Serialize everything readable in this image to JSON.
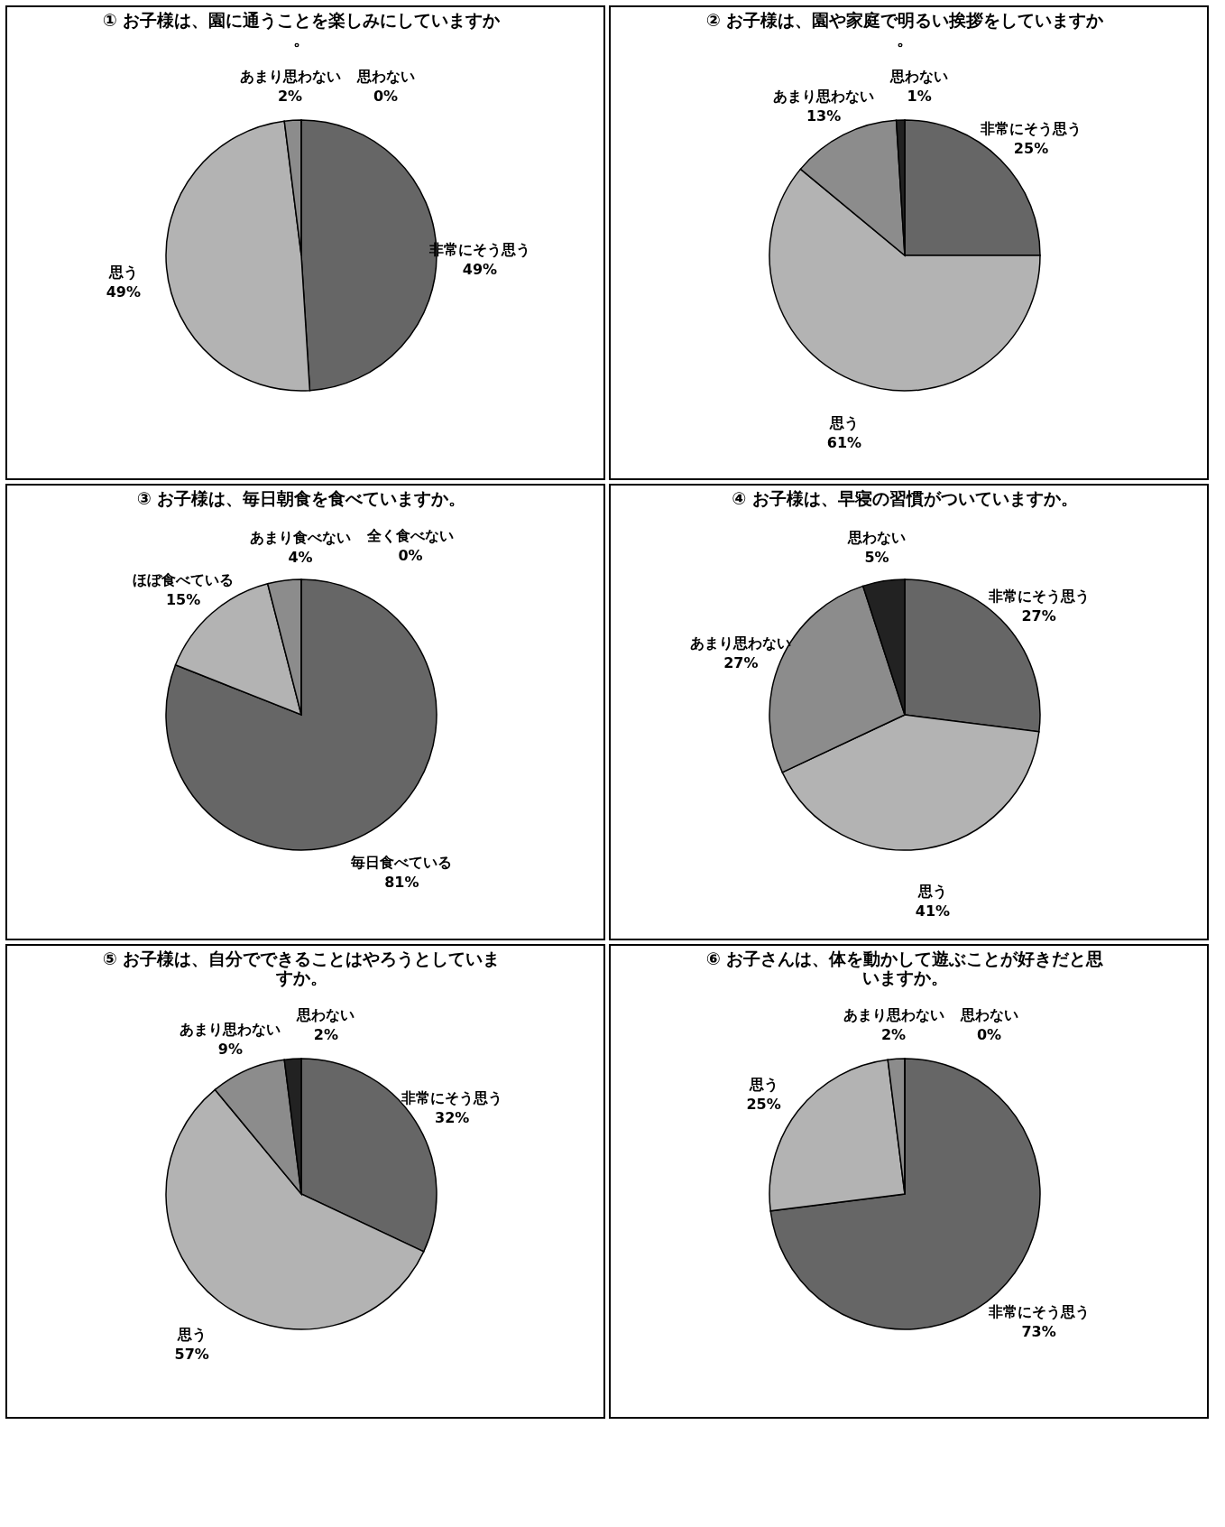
{
  "chart_data": [
    {
      "type": "pie",
      "title": "① お子様は、園に通うことを楽しみにしていますか。",
      "categories": [
        "非常にそう思う",
        "思う",
        "あまり思わない",
        "思わない"
      ],
      "values": [
        49,
        49,
        2,
        0
      ],
      "value_labels": [
        "49%",
        "49%",
        "2%",
        "0%"
      ],
      "colors": [
        "#666666",
        "#b3b3b3",
        "#8c8c8c",
        "#222222"
      ]
    },
    {
      "type": "pie",
      "title": "② お子様は、園や家庭で明るい挨拶をしていますか。",
      "categories": [
        "非常にそう思う",
        "思う",
        "あまり思わない",
        "思わない"
      ],
      "values": [
        25,
        61,
        13,
        1
      ],
      "value_labels": [
        "25%",
        "61%",
        "13%",
        "1%"
      ],
      "colors": [
        "#666666",
        "#b3b3b3",
        "#8c8c8c",
        "#222222"
      ]
    },
    {
      "type": "pie",
      "title": "③ お子様は、毎日朝食を食べていますか。",
      "categories": [
        "毎日食べている",
        "ほぼ食べている",
        "あまり食べない",
        "全く食べない"
      ],
      "values": [
        81,
        15,
        4,
        0
      ],
      "value_labels": [
        "81%",
        "15%",
        "4%",
        "0%"
      ],
      "colors": [
        "#666666",
        "#b3b3b3",
        "#8c8c8c",
        "#222222"
      ]
    },
    {
      "type": "pie",
      "title": "④ お子様は、早寝の習慣がついていますか。",
      "categories": [
        "非常にそう思う",
        "思う",
        "あまり思わない",
        "思わない"
      ],
      "values": [
        27,
        41,
        27,
        5
      ],
      "value_labels": [
        "27%",
        "41%",
        "27%",
        "5%"
      ],
      "colors": [
        "#666666",
        "#b3b3b3",
        "#8c8c8c",
        "#222222"
      ]
    },
    {
      "type": "pie",
      "title": "⑤ お子様は、自分でできることはやろうとしていますか。",
      "categories": [
        "非常にそう思う",
        "思う",
        "あまり思わない",
        "思わない"
      ],
      "values": [
        32,
        57,
        9,
        2
      ],
      "value_labels": [
        "32%",
        "57%",
        "9%",
        "2%"
      ],
      "colors": [
        "#666666",
        "#b3b3b3",
        "#8c8c8c",
        "#222222"
      ]
    },
    {
      "type": "pie",
      "title": "⑥ お子さんは、体を動かして遊ぶことが好きだと思いますか。",
      "categories": [
        "非常にそう思う",
        "思う",
        "あまり思わない",
        "思わない"
      ],
      "values": [
        73,
        25,
        2,
        0
      ],
      "value_labels": [
        "73%",
        "25%",
        "2%",
        "0%"
      ],
      "colors": [
        "#666666",
        "#b3b3b3",
        "#8c8c8c",
        "#222222"
      ]
    }
  ]
}
